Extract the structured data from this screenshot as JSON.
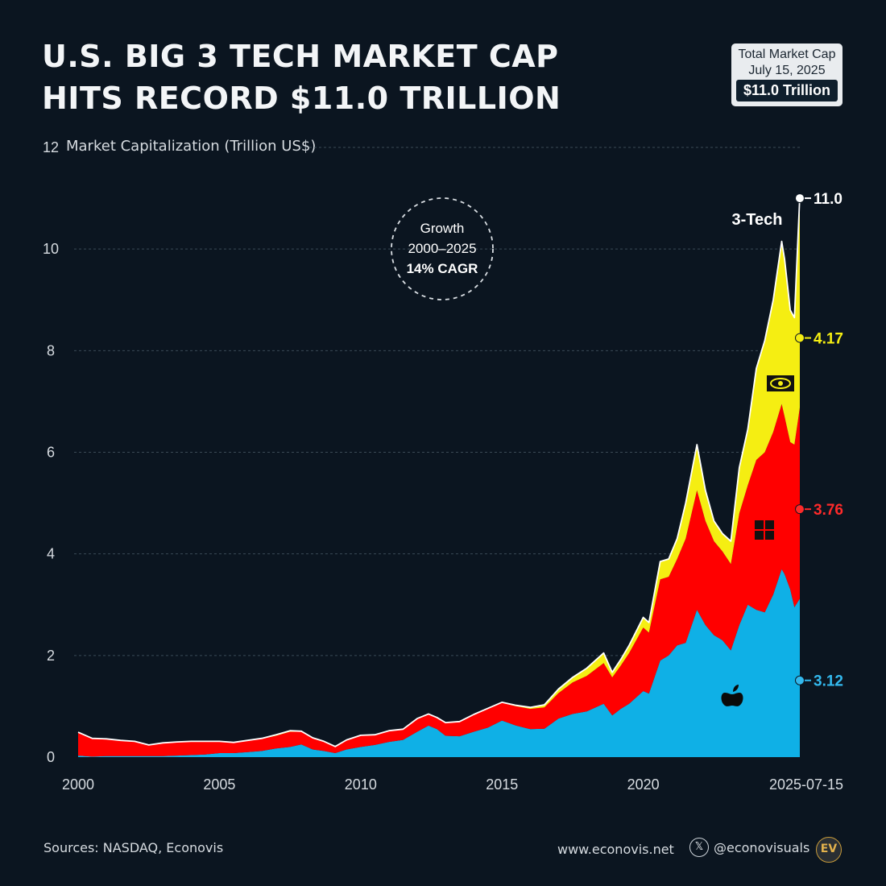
{
  "header": {
    "title_line1": "U.S. BIG 3 TECH MARKET CAP",
    "title_line2": "HITS RECORD $11.0 TRILLION"
  },
  "badge": {
    "line1": "Total Market Cap",
    "line2": "July 15, 2025",
    "value": "$11.0 Trillion"
  },
  "footer": {
    "sources": "Sources: NASDAQ, Econovis",
    "website": "www.econovis.net",
    "x_glyph": "𝕏",
    "handle": "@econovisuals",
    "logo_text": "EV"
  },
  "annotation": {
    "line1": "Growth",
    "line2": "2000–2025",
    "line3": "14% CAGR"
  },
  "colors": {
    "background": "#0b1520",
    "apple": "#0fb0e6",
    "microsoft": "#ff0000",
    "nvidia": "#f5ee12",
    "total_line": "#ffffff"
  },
  "icons": {
    "apple": "apple-logo-icon",
    "microsoft": "windows-logo-icon",
    "nvidia": "nvidia-eye-icon"
  },
  "chart_data": {
    "type": "area",
    "stacked": true,
    "title": "U.S. BIG 3 TECH MARKET CAP HITS RECORD $11.0 TRILLION",
    "ylabel": "Market Capitalization (Trillion US$)",
    "xlabel": "",
    "ylim": [
      0,
      12
    ],
    "xlim": [
      2000,
      2025.54
    ],
    "yticks": [
      "0",
      "2",
      "4",
      "6",
      "8",
      "10",
      "12"
    ],
    "xticks": [
      "2000",
      "2005",
      "2010",
      "2015",
      "2020",
      "2025-07-15"
    ],
    "grid": true,
    "x": [
      2000,
      2000.5,
      2001,
      2001.5,
      2002,
      2002.5,
      2003,
      2003.5,
      2004,
      2004.5,
      2005,
      2005.5,
      2006,
      2006.5,
      2007,
      2007.5,
      2007.9,
      2008.3,
      2008.7,
      2009.1,
      2009.5,
      2010,
      2010.5,
      2011,
      2011.5,
      2012,
      2012.4,
      2012.7,
      2013,
      2013.5,
      2014,
      2014.5,
      2015,
      2015.5,
      2016,
      2016.5,
      2017,
      2017.5,
      2018,
      2018.6,
      2018.9,
      2019.2,
      2019.5,
      2020,
      2020.2,
      2020.6,
      2020.9,
      2021.2,
      2021.5,
      2021.9,
      2022.2,
      2022.5,
      2022.8,
      2023.1,
      2023.4,
      2023.7,
      2024.0,
      2024.3,
      2024.6,
      2024.9,
      2025.0,
      2025.2,
      2025.35,
      2025.54
    ],
    "series": [
      {
        "name": "Apple",
        "values": [
          0.03,
          0.01,
          0.02,
          0.02,
          0.02,
          0.02,
          0.02,
          0.03,
          0.04,
          0.05,
          0.08,
          0.08,
          0.1,
          0.12,
          0.17,
          0.2,
          0.25,
          0.15,
          0.12,
          0.08,
          0.15,
          0.2,
          0.24,
          0.3,
          0.34,
          0.5,
          0.62,
          0.55,
          0.42,
          0.41,
          0.5,
          0.58,
          0.72,
          0.62,
          0.55,
          0.56,
          0.76,
          0.85,
          0.9,
          1.05,
          0.82,
          0.95,
          1.05,
          1.3,
          1.25,
          1.9,
          2.0,
          2.2,
          2.25,
          2.9,
          2.6,
          2.4,
          2.3,
          2.1,
          2.6,
          3.0,
          2.9,
          2.85,
          3.2,
          3.7,
          3.6,
          3.3,
          2.95,
          3.12
        ]
      },
      {
        "name": "Microsoft",
        "values": [
          0.45,
          0.35,
          0.33,
          0.3,
          0.28,
          0.22,
          0.26,
          0.27,
          0.27,
          0.26,
          0.23,
          0.21,
          0.22,
          0.24,
          0.25,
          0.3,
          0.25,
          0.22,
          0.18,
          0.12,
          0.18,
          0.22,
          0.19,
          0.21,
          0.2,
          0.25,
          0.22,
          0.22,
          0.25,
          0.28,
          0.33,
          0.37,
          0.35,
          0.38,
          0.4,
          0.42,
          0.5,
          0.62,
          0.7,
          0.8,
          0.75,
          0.85,
          1.0,
          1.25,
          1.2,
          1.6,
          1.55,
          1.7,
          2.05,
          2.35,
          2.05,
          1.85,
          1.75,
          1.7,
          2.2,
          2.35,
          2.95,
          3.15,
          3.2,
          3.25,
          3.1,
          2.9,
          3.2,
          3.76
        ]
      },
      {
        "name": "NVIDIA",
        "values": [
          0.01,
          0.01,
          0.01,
          0.01,
          0.01,
          0.0,
          0.0,
          0.0,
          0.0,
          0.0,
          0.0,
          0.0,
          0.01,
          0.01,
          0.02,
          0.02,
          0.01,
          0.01,
          0.01,
          0.01,
          0.01,
          0.01,
          0.01,
          0.01,
          0.01,
          0.01,
          0.01,
          0.01,
          0.01,
          0.01,
          0.01,
          0.01,
          0.01,
          0.02,
          0.03,
          0.05,
          0.08,
          0.1,
          0.15,
          0.2,
          0.1,
          0.12,
          0.15,
          0.2,
          0.2,
          0.35,
          0.35,
          0.4,
          0.7,
          0.9,
          0.6,
          0.4,
          0.35,
          0.45,
          0.9,
          1.1,
          1.8,
          2.2,
          2.6,
          3.2,
          3.1,
          2.6,
          2.5,
          4.17
        ]
      }
    ],
    "total_label": "3-Tech",
    "end_values": {
      "total": "11.0",
      "nvidia": "4.17",
      "microsoft": "3.76",
      "apple": "3.12"
    }
  }
}
